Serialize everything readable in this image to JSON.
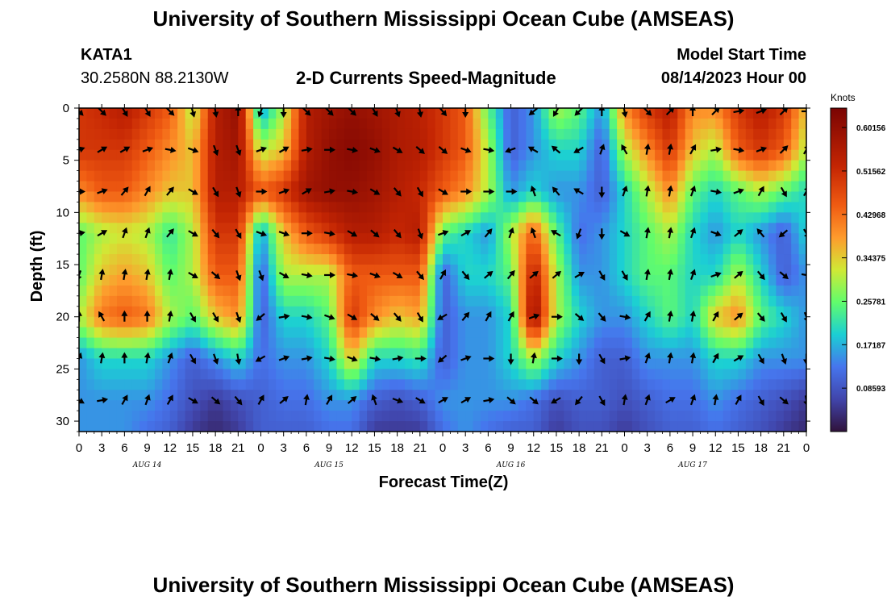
{
  "header": {
    "title": "University of Southern Mississippi Ocean Cube (AMSEAS)",
    "station": "KATA1",
    "coordinates": "30.2580N  88.2130W",
    "subtitle": "2-D Currents Speed-Magnitude",
    "model_start_label": "Model Start Time",
    "model_start_value": "08/14/2023 Hour 00"
  },
  "footer": {
    "title": "University of Southern Mississippi Ocean Cube (AMSEAS)"
  },
  "chart_data": {
    "type": "heatmap",
    "title": "2-D Currents Speed-Magnitude",
    "xlabel": "Forecast Time(Z)",
    "ylabel": "Depth (ft)",
    "x_tick_labels": [
      "0",
      "3",
      "6",
      "9",
      "12",
      "15",
      "18",
      "21",
      "0",
      "3",
      "6",
      "9",
      "12",
      "15",
      "18",
      "21",
      "0",
      "3",
      "6",
      "9",
      "12",
      "15",
      "18",
      "21",
      "0",
      "3",
      "6",
      "9",
      "12",
      "15",
      "18",
      "21",
      "0"
    ],
    "x_hours": [
      0,
      3,
      6,
      9,
      12,
      15,
      18,
      21,
      24,
      27,
      30,
      33,
      36,
      39,
      42,
      45,
      48,
      51,
      54,
      57,
      60,
      63,
      66,
      69,
      72,
      75,
      78,
      81,
      84,
      87,
      90,
      93,
      96
    ],
    "xlim": [
      0,
      96
    ],
    "date_labels": [
      {
        "text": "AUG 14",
        "hour": 9
      },
      {
        "text": "AUG 15",
        "hour": 33
      },
      {
        "text": "AUG 16",
        "hour": 57
      },
      {
        "text": "AUG 17",
        "hour": 81
      }
    ],
    "y_tick_labels": [
      "0",
      "5",
      "10",
      "15",
      "20",
      "25",
      "30"
    ],
    "y_ticks": [
      0,
      5,
      10,
      15,
      20,
      25,
      30
    ],
    "ylim": [
      0,
      31
    ],
    "y_inverted": true,
    "colorbar": {
      "unit": "Knots",
      "min": 0.0,
      "max": 0.64,
      "tick_labels": [
        "0.60156",
        "0.51562",
        "0.42968",
        "0.34375",
        "0.25781",
        "0.17187",
        "0.08593"
      ],
      "tick_values": [
        0.60156,
        0.51562,
        0.42968,
        0.34375,
        0.25781,
        0.17187,
        0.08593
      ]
    },
    "grid_hours": [
      0,
      3,
      6,
      9,
      12,
      15,
      18,
      21,
      24,
      27,
      30,
      33,
      36,
      39,
      42,
      45,
      48,
      51,
      54,
      57,
      60,
      63,
      66,
      69,
      72,
      75,
      78,
      81,
      84,
      87,
      90,
      93,
      96
    ],
    "grid_depths": [
      0,
      4,
      8,
      12,
      16,
      20,
      24,
      28,
      31
    ],
    "speed": [
      [
        0.5,
        0.52,
        0.55,
        0.5,
        0.45,
        0.3,
        0.55,
        0.6,
        0.15,
        0.3,
        0.55,
        0.58,
        0.6,
        0.58,
        0.56,
        0.54,
        0.5,
        0.45,
        0.25,
        0.1,
        0.15,
        0.3,
        0.25,
        0.15,
        0.4,
        0.5,
        0.55,
        0.4,
        0.4,
        0.5,
        0.55,
        0.5,
        0.35
      ],
      [
        0.5,
        0.5,
        0.5,
        0.45,
        0.4,
        0.35,
        0.55,
        0.58,
        0.3,
        0.35,
        0.55,
        0.6,
        0.62,
        0.6,
        0.56,
        0.55,
        0.5,
        0.45,
        0.3,
        0.1,
        0.15,
        0.2,
        0.2,
        0.1,
        0.3,
        0.4,
        0.5,
        0.35,
        0.3,
        0.45,
        0.5,
        0.45,
        0.3
      ],
      [
        0.4,
        0.45,
        0.45,
        0.4,
        0.35,
        0.35,
        0.55,
        0.55,
        0.45,
        0.5,
        0.58,
        0.6,
        0.6,
        0.58,
        0.55,
        0.52,
        0.45,
        0.4,
        0.3,
        0.15,
        0.2,
        0.15,
        0.15,
        0.1,
        0.2,
        0.3,
        0.4,
        0.25,
        0.2,
        0.25,
        0.3,
        0.25,
        0.2
      ],
      [
        0.25,
        0.3,
        0.32,
        0.3,
        0.22,
        0.3,
        0.5,
        0.5,
        0.15,
        0.35,
        0.45,
        0.5,
        0.55,
        0.55,
        0.52,
        0.55,
        0.25,
        0.2,
        0.15,
        0.3,
        0.45,
        0.25,
        0.12,
        0.15,
        0.2,
        0.25,
        0.3,
        0.2,
        0.15,
        0.2,
        0.15,
        0.1,
        0.2
      ],
      [
        0.25,
        0.35,
        0.38,
        0.35,
        0.25,
        0.3,
        0.45,
        0.45,
        0.1,
        0.3,
        0.3,
        0.3,
        0.45,
        0.45,
        0.45,
        0.45,
        0.1,
        0.2,
        0.2,
        0.25,
        0.55,
        0.3,
        0.15,
        0.15,
        0.2,
        0.25,
        0.25,
        0.2,
        0.2,
        0.3,
        0.2,
        0.1,
        0.15
      ],
      [
        0.3,
        0.42,
        0.45,
        0.42,
        0.3,
        0.25,
        0.35,
        0.4,
        0.1,
        0.2,
        0.2,
        0.25,
        0.5,
        0.4,
        0.35,
        0.38,
        0.1,
        0.15,
        0.15,
        0.2,
        0.6,
        0.3,
        0.2,
        0.15,
        0.15,
        0.2,
        0.25,
        0.2,
        0.35,
        0.4,
        0.25,
        0.2,
        0.15
      ],
      [
        0.15,
        0.2,
        0.2,
        0.2,
        0.15,
        0.1,
        0.15,
        0.2,
        0.12,
        0.15,
        0.15,
        0.2,
        0.35,
        0.2,
        0.2,
        0.22,
        0.1,
        0.15,
        0.15,
        0.2,
        0.3,
        0.2,
        0.15,
        0.1,
        0.1,
        0.15,
        0.15,
        0.15,
        0.2,
        0.2,
        0.15,
        0.15,
        0.15
      ],
      [
        0.15,
        0.15,
        0.15,
        0.15,
        0.12,
        0.08,
        0.05,
        0.08,
        0.1,
        0.12,
        0.12,
        0.15,
        0.15,
        0.1,
        0.08,
        0.1,
        0.15,
        0.15,
        0.15,
        0.15,
        0.12,
        0.08,
        0.1,
        0.1,
        0.08,
        0.1,
        0.12,
        0.12,
        0.15,
        0.12,
        0.1,
        0.08,
        0.05
      ],
      [
        0.15,
        0.15,
        0.15,
        0.12,
        0.1,
        0.05,
        0.03,
        0.05,
        0.1,
        0.1,
        0.1,
        0.12,
        0.12,
        0.05,
        0.05,
        0.05,
        0.12,
        0.15,
        0.12,
        0.1,
        0.1,
        0.05,
        0.08,
        0.08,
        0.05,
        0.08,
        0.1,
        0.1,
        0.12,
        0.1,
        0.08,
        0.05,
        0.03
      ]
    ],
    "arrow_hours": [
      0,
      3,
      6,
      9,
      12,
      15,
      18,
      21,
      24,
      27,
      30,
      33,
      36,
      39,
      42,
      45,
      48,
      51,
      54,
      57,
      60,
      63,
      66,
      69,
      72,
      75,
      78,
      81,
      84,
      87,
      90,
      93,
      96
    ],
    "arrow_depths": [
      0,
      4,
      8,
      12,
      16,
      20,
      24,
      28
    ],
    "arrow_directions_deg": [
      [
        135,
        135,
        150,
        150,
        135,
        165,
        170,
        0,
        200,
        180,
        135,
        135,
        135,
        150,
        160,
        170,
        140,
        180,
        -1,
        -1,
        230,
        210,
        225,
        0,
        170,
        135,
        45,
        0,
        45,
        80,
        70,
        45,
        90
      ],
      [
        70,
        60,
        60,
        70,
        100,
        110,
        160,
        160,
        70,
        60,
        80,
        90,
        100,
        110,
        120,
        130,
        130,
        110,
        100,
        250,
        300,
        310,
        240,
        20,
        330,
        10,
        10,
        30,
        80,
        100,
        70,
        45,
        30
      ],
      [
        90,
        70,
        40,
        30,
        40,
        120,
        150,
        160,
        90,
        70,
        60,
        80,
        100,
        120,
        140,
        150,
        120,
        90,
        90,
        90,
        340,
        320,
        300,
        180,
        20,
        10,
        10,
        20,
        100,
        70,
        30,
        150,
        30
      ],
      [
        80,
        60,
        20,
        20,
        40,
        120,
        140,
        150,
        110,
        110,
        90,
        100,
        120,
        130,
        140,
        160,
        70,
        60,
        40,
        20,
        340,
        300,
        200,
        180,
        120,
        10,
        10,
        20,
        110,
        50,
        320,
        230,
        150
      ],
      [
        200,
        10,
        10,
        10,
        10,
        120,
        130,
        160,
        160,
        120,
        100,
        90,
        100,
        110,
        120,
        140,
        30,
        140,
        50,
        40,
        50,
        50,
        60,
        150,
        150,
        10,
        10,
        20,
        70,
        50,
        140,
        130,
        100
      ],
      [
        0,
        330,
        0,
        0,
        10,
        150,
        150,
        160,
        230,
        80,
        100,
        110,
        120,
        130,
        140,
        150,
        240,
        40,
        30,
        30,
        70,
        90,
        130,
        140,
        100,
        30,
        10,
        10,
        30,
        50,
        140,
        150,
        160
      ],
      [
        20,
        10,
        0,
        10,
        20,
        150,
        160,
        170,
        240,
        70,
        80,
        100,
        110,
        100,
        80,
        90,
        230,
        70,
        90,
        180,
        10,
        90,
        180,
        150,
        80,
        20,
        10,
        10,
        30,
        60,
        150,
        160,
        180
      ],
      [
        120,
        80,
        30,
        20,
        30,
        120,
        130,
        140,
        30,
        50,
        10,
        30,
        50,
        340,
        110,
        120,
        60,
        60,
        80,
        130,
        130,
        240,
        220,
        150,
        10,
        20,
        60,
        20,
        10,
        30,
        150,
        130,
        170
      ]
    ]
  }
}
